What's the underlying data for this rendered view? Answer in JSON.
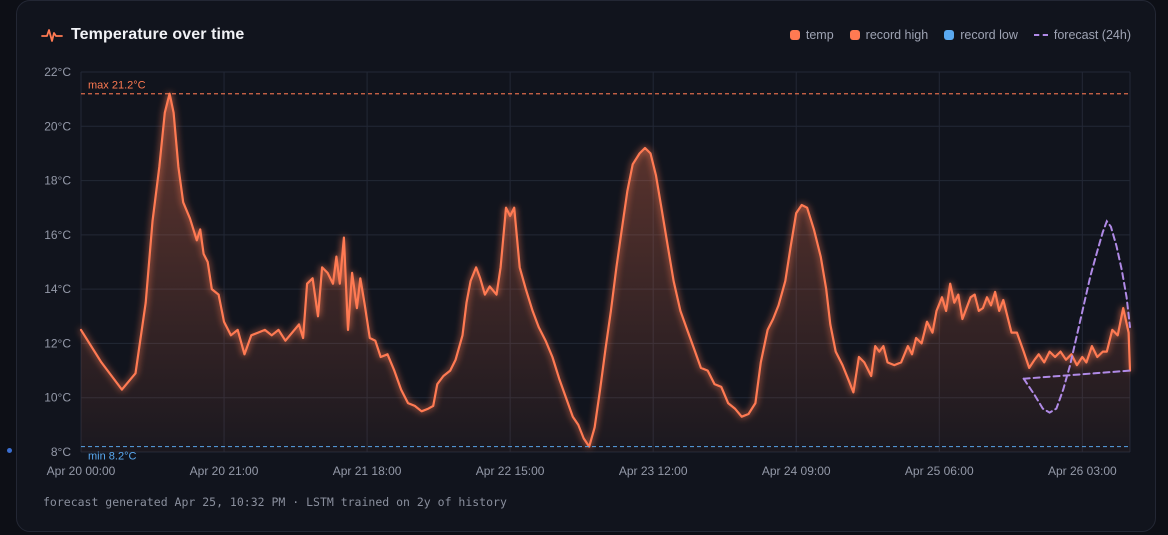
{
  "title": "Temperature over time",
  "footer": "forecast generated Apr 25, 10:32 PM · LSTM trained on 2y of history",
  "colors": {
    "temp": "#ff7a52",
    "record_high": "#ff7a52",
    "record_low": "#5aa9f0",
    "forecast": "#b08ae6",
    "grid": "#232836",
    "tick": "#9499a8"
  },
  "legend": [
    {
      "label": "temp",
      "kind": "swatch",
      "color": "#ff7a52"
    },
    {
      "label": "record high",
      "kind": "swatch",
      "color": "#ff7a52"
    },
    {
      "label": "record low",
      "kind": "swatch",
      "color": "#5aa9f0"
    },
    {
      "label": "forecast (24h)",
      "kind": "dashed",
      "color": "#b08ae6"
    }
  ],
  "chart_data": {
    "type": "area",
    "title": "Temperature over time",
    "x_unit": "hours since Apr 20 00:00",
    "xlim": [
      0,
      154
    ],
    "ylim": [
      8,
      22
    ],
    "grid": true,
    "legend_position": "top-right",
    "y_ticks": [
      8,
      10,
      12,
      14,
      16,
      18,
      20,
      22
    ],
    "y_tick_labels": [
      "8°C",
      "10°C",
      "12°C",
      "14°C",
      "16°C",
      "18°C",
      "20°C",
      "22°C"
    ],
    "x_ticks": [
      0,
      21,
      42,
      63,
      84,
      105,
      126,
      147
    ],
    "x_tick_labels": [
      "Apr 20 00:00",
      "Apr 20 21:00",
      "Apr 21 18:00",
      "Apr 22 15:00",
      "Apr 23 12:00",
      "Apr 24 09:00",
      "Apr 25 06:00",
      "Apr 26 03:00"
    ],
    "annotations": [
      {
        "label": "max 21.2°C",
        "y": 21.2,
        "series": "record high"
      },
      {
        "label": "min 8.2°C",
        "y": 8.2,
        "series": "record low"
      }
    ],
    "series": [
      {
        "name": "temp",
        "points": [
          [
            0,
            12.5
          ],
          [
            3,
            11.3
          ],
          [
            6,
            10.3
          ],
          [
            8,
            10.9
          ],
          [
            9.5,
            13.5
          ],
          [
            10.5,
            16.5
          ],
          [
            11.5,
            18.5
          ],
          [
            12.3,
            20.5
          ],
          [
            13,
            21.2
          ],
          [
            13.6,
            20.5
          ],
          [
            14.3,
            18.5
          ],
          [
            15,
            17.2
          ],
          [
            16,
            16.6
          ],
          [
            17,
            15.8
          ],
          [
            17.5,
            16.2
          ],
          [
            18,
            15.3
          ],
          [
            18.6,
            15
          ],
          [
            19.2,
            14
          ],
          [
            20.2,
            13.8
          ],
          [
            21,
            12.8
          ],
          [
            22,
            12.3
          ],
          [
            23,
            12.5
          ],
          [
            24,
            11.6
          ],
          [
            25,
            12.3
          ],
          [
            26,
            12.4
          ],
          [
            27,
            12.5
          ],
          [
            28,
            12.3
          ],
          [
            29,
            12.5
          ],
          [
            30,
            12.1
          ],
          [
            31,
            12.4
          ],
          [
            32,
            12.7
          ],
          [
            32.6,
            12.2
          ],
          [
            33.2,
            14.2
          ],
          [
            34,
            14.4
          ],
          [
            34.8,
            13
          ],
          [
            35.4,
            14.8
          ],
          [
            36.2,
            14.6
          ],
          [
            37,
            14.2
          ],
          [
            37.5,
            15.2
          ],
          [
            38,
            14.2
          ],
          [
            38.6,
            15.9
          ],
          [
            39.2,
            12.5
          ],
          [
            39.8,
            14.6
          ],
          [
            40.5,
            13.3
          ],
          [
            41,
            14.4
          ],
          [
            41.6,
            13.5
          ],
          [
            42.4,
            12.2
          ],
          [
            43.2,
            12.1
          ],
          [
            44,
            11.5
          ],
          [
            45,
            11.6
          ],
          [
            46,
            11
          ],
          [
            47,
            10.3
          ],
          [
            48,
            9.8
          ],
          [
            49,
            9.7
          ],
          [
            50,
            9.5
          ],
          [
            51,
            9.6
          ],
          [
            51.7,
            9.7
          ],
          [
            52.3,
            10.5
          ],
          [
            53.2,
            10.8
          ],
          [
            54.2,
            11
          ],
          [
            55,
            11.4
          ],
          [
            56,
            12.3
          ],
          [
            56.6,
            13.5
          ],
          [
            57.2,
            14.3
          ],
          [
            58,
            14.8
          ],
          [
            58.6,
            14.4
          ],
          [
            59.3,
            13.8
          ],
          [
            60,
            14.1
          ],
          [
            61,
            13.8
          ],
          [
            61.6,
            14.8
          ],
          [
            62.4,
            17
          ],
          [
            63,
            16.7
          ],
          [
            63.6,
            17
          ],
          [
            64.4,
            14.8
          ],
          [
            65.3,
            14
          ],
          [
            66.3,
            13.2
          ],
          [
            67.2,
            12.6
          ],
          [
            68.2,
            12.1
          ],
          [
            69.2,
            11.5
          ],
          [
            70.2,
            10.7
          ],
          [
            71.2,
            10
          ],
          [
            72.2,
            9.3
          ],
          [
            73,
            9
          ],
          [
            73.8,
            8.5
          ],
          [
            74.6,
            8.2
          ],
          [
            75.4,
            8.9
          ],
          [
            76.2,
            10.3
          ],
          [
            77,
            11.8
          ],
          [
            77.8,
            13.2
          ],
          [
            78.6,
            14.8
          ],
          [
            79.4,
            16.2
          ],
          [
            80.2,
            17.6
          ],
          [
            81,
            18.6
          ],
          [
            82,
            19
          ],
          [
            82.8,
            19.2
          ],
          [
            83.6,
            19
          ],
          [
            84.4,
            18.2
          ],
          [
            85.2,
            17
          ],
          [
            86,
            15.8
          ],
          [
            87,
            14.3
          ],
          [
            88,
            13.2
          ],
          [
            89,
            12.5
          ],
          [
            90,
            11.8
          ],
          [
            91,
            11.1
          ],
          [
            92,
            11
          ],
          [
            93,
            10.5
          ],
          [
            94,
            10.4
          ],
          [
            95,
            9.8
          ],
          [
            96,
            9.6
          ],
          [
            97,
            9.3
          ],
          [
            98,
            9.4
          ],
          [
            99,
            9.8
          ],
          [
            99.8,
            11.3
          ],
          [
            100.8,
            12.5
          ],
          [
            101.6,
            12.9
          ],
          [
            102.4,
            13.4
          ],
          [
            103.4,
            14.3
          ],
          [
            104.2,
            15.6
          ],
          [
            105,
            16.8
          ],
          [
            105.8,
            17.1
          ],
          [
            106.6,
            17
          ],
          [
            107.6,
            16.2
          ],
          [
            108.6,
            15.2
          ],
          [
            109.4,
            14
          ],
          [
            110,
            12.7
          ],
          [
            110.8,
            11.7
          ],
          [
            111.8,
            11.2
          ],
          [
            112.6,
            10.7
          ],
          [
            113.4,
            10.2
          ],
          [
            114.2,
            11.5
          ],
          [
            115,
            11.3
          ],
          [
            116,
            10.8
          ],
          [
            116.6,
            11.9
          ],
          [
            117.2,
            11.7
          ],
          [
            117.8,
            11.9
          ],
          [
            118.4,
            11.3
          ],
          [
            119.4,
            11.2
          ],
          [
            120.4,
            11.3
          ],
          [
            121.4,
            11.9
          ],
          [
            122,
            11.6
          ],
          [
            122.6,
            12.2
          ],
          [
            123.4,
            12
          ],
          [
            124.2,
            12.8
          ],
          [
            125,
            12.4
          ],
          [
            125.6,
            13.2
          ],
          [
            126.4,
            13.7
          ],
          [
            127,
            13.2
          ],
          [
            127.6,
            14.2
          ],
          [
            128.2,
            13.5
          ],
          [
            128.8,
            13.8
          ],
          [
            129.4,
            12.9
          ],
          [
            130,
            13.3
          ],
          [
            130.6,
            13.7
          ],
          [
            131.2,
            13.8
          ],
          [
            131.8,
            13.2
          ],
          [
            132.4,
            13.3
          ],
          [
            133,
            13.7
          ],
          [
            133.6,
            13.4
          ],
          [
            134.2,
            13.9
          ],
          [
            134.8,
            13.2
          ],
          [
            135.4,
            13.6
          ],
          [
            136,
            13
          ],
          [
            136.6,
            12.4
          ],
          [
            137.4,
            12.4
          ],
          [
            138.4,
            11.7
          ],
          [
            139.2,
            11.1
          ],
          [
            140,
            11.4
          ],
          [
            140.6,
            11.6
          ],
          [
            141.4,
            11.3
          ],
          [
            142.2,
            11.7
          ],
          [
            143,
            11.5
          ],
          [
            143.8,
            11.7
          ],
          [
            144.6,
            11.4
          ],
          [
            145.4,
            11.6
          ],
          [
            146.2,
            11.2
          ],
          [
            147,
            11.5
          ],
          [
            147.6,
            11.3
          ],
          [
            148.4,
            11.9
          ],
          [
            149.2,
            11.5
          ],
          [
            150,
            11.7
          ],
          [
            150.6,
            11.7
          ],
          [
            151.4,
            12.5
          ],
          [
            152.2,
            12.3
          ],
          [
            153,
            13.3
          ],
          [
            153.8,
            12.4
          ],
          [
            154,
            11
          ]
        ]
      },
      {
        "name": "forecast (24h)",
        "dashed": true,
        "points": [
          [
            138.4,
            10.7
          ],
          [
            140,
            10.1
          ],
          [
            141.2,
            9.6
          ],
          [
            142.2,
            9.45
          ],
          [
            143.2,
            9.6
          ],
          [
            144.2,
            10.3
          ],
          [
            145.2,
            11.2
          ],
          [
            146.2,
            12.3
          ],
          [
            147.2,
            13.4
          ],
          [
            148.2,
            14.5
          ],
          [
            149.2,
            15.4
          ],
          [
            150,
            16.1
          ],
          [
            150.6,
            16.5
          ],
          [
            151.2,
            16.3
          ],
          [
            152,
            15.6
          ],
          [
            152.8,
            14.7
          ],
          [
            153.5,
            13.7
          ],
          [
            154,
            12.6
          ]
        ]
      },
      {
        "name": "forecast (24h) baseline",
        "dashed": true,
        "points": [
          [
            138.4,
            10.7
          ],
          [
            154,
            11.0
          ]
        ]
      }
    ]
  }
}
